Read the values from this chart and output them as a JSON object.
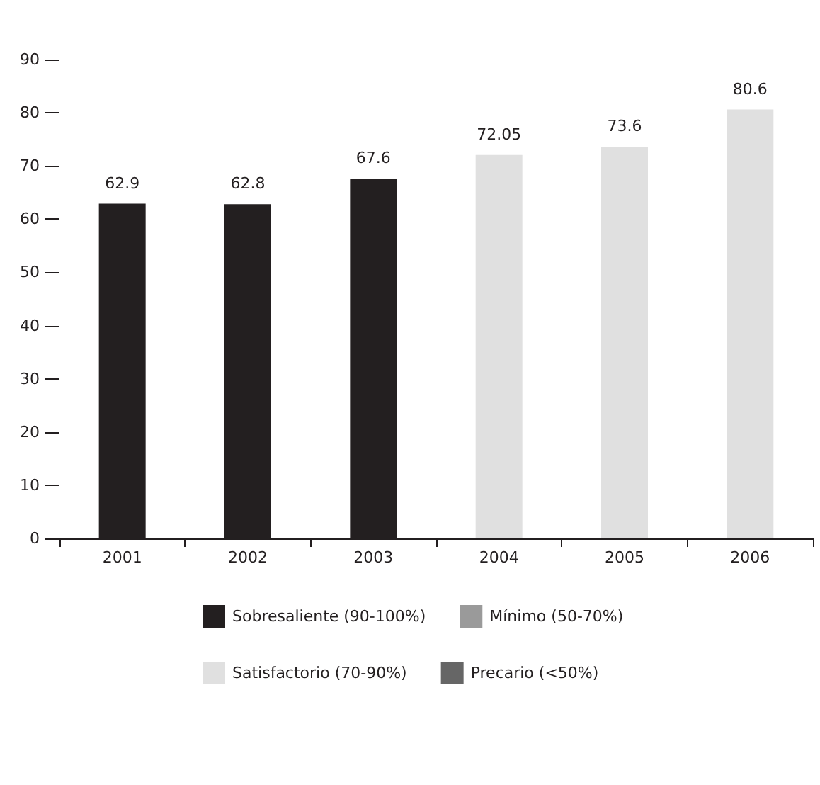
{
  "chart_data": {
    "type": "bar",
    "categories": [
      "2001",
      "2002",
      "2003",
      "2004",
      "2005",
      "2006"
    ],
    "series": [
      {
        "name": "Sobresaliente (90-100%)",
        "color": "#231f20",
        "values": [
          62.9,
          62.8,
          67.6,
          null,
          null,
          null
        ]
      },
      {
        "name": "Mínimo (50-70%)",
        "color": "#9a9a9a",
        "values": [
          null,
          null,
          null,
          null,
          null,
          null
        ]
      },
      {
        "name": "Satisfactorio (70-90%)",
        "color": "#e0e0e0",
        "values": [
          null,
          null,
          null,
          72.05,
          73.6,
          80.6
        ]
      },
      {
        "name": "Precario (<50%)",
        "color": "#666666",
        "values": [
          null,
          null,
          null,
          null,
          null,
          null
        ]
      }
    ],
    "stacked": true,
    "ylim": [
      0,
      90
    ],
    "yticks": [
      0,
      10,
      20,
      30,
      40,
      50,
      60,
      70,
      80,
      90
    ],
    "data_labels": true,
    "grid": false,
    "legend": "bottom"
  }
}
